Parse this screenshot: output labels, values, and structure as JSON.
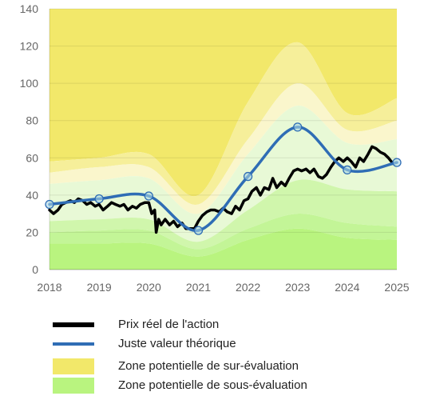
{
  "chart_data": {
    "type": "area",
    "x_ticks": [
      "2018",
      "2019",
      "2020",
      "2021",
      "2022",
      "2023",
      "2024",
      "2025"
    ],
    "y_ticks": [
      0,
      20,
      40,
      60,
      80,
      100,
      120,
      140
    ],
    "ylim": [
      0,
      140
    ],
    "xlim": [
      2018,
      2025
    ],
    "grid": "horizontal",
    "legend_position": "bottom",
    "colors": {
      "price": "#000000",
      "fair_value": "#2f6db5",
      "over_zone": "#f2e86a",
      "under_zone": "#b9f47f",
      "marker_fill": "#a9d6e5"
    },
    "fair_value": {
      "name": "Juste valeur théorique",
      "x": [
        2018.0,
        2019.0,
        2020.0,
        2021.0,
        2022.0,
        2023.0,
        2024.0,
        2025.0
      ],
      "y": [
        35,
        38,
        39.5,
        21,
        50,
        76.5,
        53.5,
        57.5
      ]
    },
    "price": {
      "name": "Prix réel de l'action",
      "x": [
        2018.0,
        2018.08,
        2018.17,
        2018.25,
        2018.33,
        2018.42,
        2018.5,
        2018.58,
        2018.67,
        2018.75,
        2018.83,
        2018.92,
        2019.0,
        2019.08,
        2019.17,
        2019.25,
        2019.33,
        2019.42,
        2019.5,
        2019.58,
        2019.67,
        2019.75,
        2019.83,
        2019.92,
        2020.0,
        2020.06,
        2020.12,
        2020.15,
        2020.2,
        2020.25,
        2020.33,
        2020.42,
        2020.5,
        2020.58,
        2020.67,
        2020.75,
        2020.83,
        2020.92,
        2021.0,
        2021.08,
        2021.17,
        2021.25,
        2021.33,
        2021.42,
        2021.5,
        2021.58,
        2021.67,
        2021.75,
        2021.83,
        2021.92,
        2022.0,
        2022.08,
        2022.17,
        2022.25,
        2022.33,
        2022.42,
        2022.5,
        2022.58,
        2022.67,
        2022.75,
        2022.83,
        2022.92,
        2023.0,
        2023.08,
        2023.17,
        2023.25,
        2023.33,
        2023.42,
        2023.5,
        2023.58,
        2023.67,
        2023.75,
        2023.83,
        2023.92,
        2024.0,
        2024.08,
        2024.17,
        2024.25,
        2024.33,
        2024.42,
        2024.5,
        2024.58,
        2024.67,
        2024.75,
        2024.83,
        2024.92
      ],
      "y": [
        32,
        30,
        32,
        35,
        36,
        37,
        36,
        38,
        37,
        35,
        36,
        34,
        35,
        32,
        34,
        36,
        35,
        34,
        35,
        32,
        34,
        33,
        35,
        36,
        36,
        30,
        32,
        20,
        27,
        24,
        27,
        24,
        26,
        23,
        25,
        22,
        22,
        22,
        26,
        29,
        31,
        32,
        32,
        31,
        33,
        31,
        30,
        34,
        32,
        37,
        38,
        42,
        44,
        40,
        44,
        43,
        49,
        44,
        47,
        45,
        49,
        53,
        54,
        53,
        54,
        52,
        54,
        50,
        49,
        51,
        55,
        58,
        60,
        58,
        60,
        58,
        55,
        60,
        58,
        62,
        66,
        65,
        63,
        62,
        60,
        57
      ]
    },
    "bands": {
      "over_outer": [
        58,
        60,
        62,
        40,
        90,
        122,
        84,
        92
      ],
      "over_mid": [
        52,
        55,
        55,
        35,
        70,
        100,
        75,
        80
      ],
      "over_inner": [
        46,
        48,
        49,
        30,
        62,
        88,
        68,
        70
      ],
      "under_inner": [
        26,
        27,
        27,
        15,
        32,
        48,
        43,
        42
      ],
      "under_mid": [
        20,
        21,
        21,
        11,
        22,
        30,
        25,
        23
      ],
      "under_outer": [
        14,
        14,
        14,
        7,
        16,
        22,
        17,
        16
      ]
    }
  },
  "legend": {
    "price": "Prix réel de l'action",
    "fair_value": "Juste valeur théorique",
    "over": "Zone potentielle de sur-évaluation",
    "under": "Zone potentielle de sous-évaluation"
  }
}
